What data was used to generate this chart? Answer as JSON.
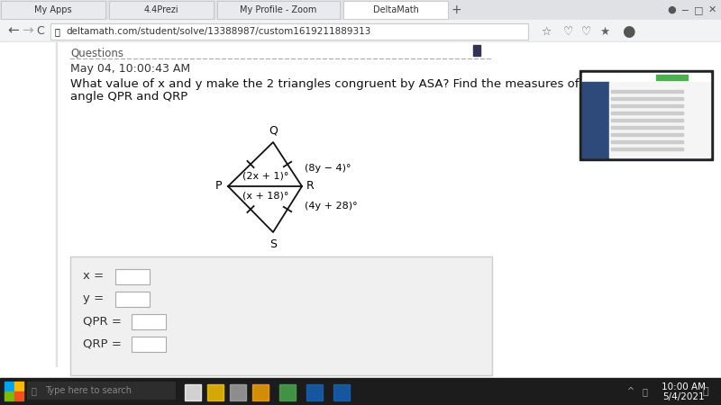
{
  "title_line1": "What value of x and y make the 2 triangles congruent by ASA? Find the measures of",
  "title_line2": "angle QPR and QRP",
  "bg_color": "#ffffff",
  "tab_bg": "#e8eaed",
  "active_tab_bg": "#ffffff",
  "address_bar_bg": "#f1f3f4",
  "content_bg": "#ffffff",
  "taskbar_bg": "#1e1e1e",
  "date_text": "May 04, 10:00:43 AM",
  "url_text": "deltamath.com/student/solve/13388987/custom1619211889313",
  "tab_names": [
    "My Apps",
    "4.4Prezi",
    "My Profile - Zoom",
    "DeltaMath"
  ],
  "triangle_color": "#000000",
  "input_box_bg": "#f0f0f0",
  "input_field_bg": "#ffffff",
  "field_labels": [
    "x =",
    "y =",
    "QPR =",
    "QRP ="
  ],
  "angle_labels_left": [
    "(2x + 1)°",
    "(x + 18)°"
  ],
  "angle_labels_right": [
    "(8y − 4)°",
    "(4y + 28)°"
  ],
  "vertex_labels": [
    "Q",
    "P",
    "R",
    "S"
  ],
  "time_text": "10:00 AM",
  "date_bottom": "5/4/2021"
}
